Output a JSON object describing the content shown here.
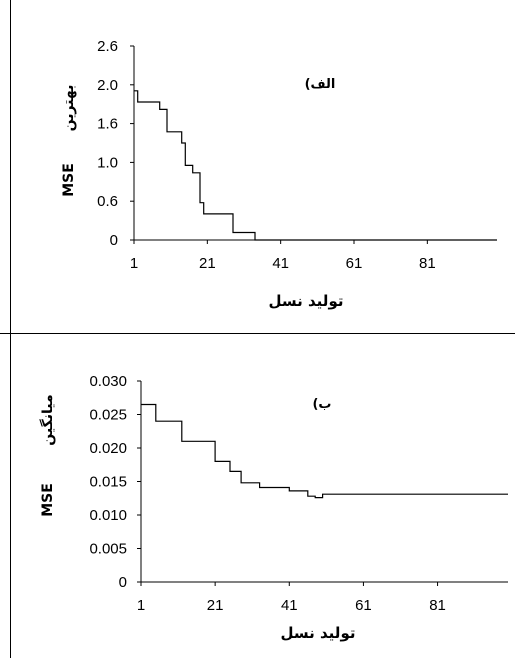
{
  "chart_data": [
    {
      "type": "line",
      "panel_label": "الف)",
      "title": "",
      "xlabel": "تولید نسل",
      "ylabel_fa": "بهترین",
      "ylabel_en": "MSE",
      "xlim": [
        1,
        100
      ],
      "ylim": [
        0,
        2.6
      ],
      "xticks": [
        "1",
        "21",
        "41",
        "61",
        "81"
      ],
      "yticks": [
        "0",
        "0.6",
        "1.0",
        "1.6",
        "2.0",
        "2.6"
      ],
      "series": [
        {
          "style": "step",
          "color": "#000000",
          "x": [
            1,
            2,
            6,
            8,
            10,
            13,
            14,
            15,
            16,
            17,
            19,
            20,
            27,
            28,
            33,
            34,
            100
          ],
          "y": [
            2.0,
            1.85,
            1.85,
            1.75,
            1.45,
            1.45,
            1.3,
            1.0,
            1.0,
            0.9,
            0.5,
            0.35,
            0.35,
            0.1,
            0.1,
            0.0,
            0.0
          ]
        }
      ]
    },
    {
      "type": "line",
      "panel_label": "ب)",
      "title": "",
      "xlabel": "تولید نسل",
      "ylabel_fa": "میانگین",
      "ylabel_en": "MSE",
      "xlim": [
        1,
        100
      ],
      "ylim": [
        0,
        0.03
      ],
      "xticks": [
        "1",
        "21",
        "41",
        "61",
        "81"
      ],
      "yticks": [
        "0",
        "0.005",
        "0.010",
        "0.015",
        "0.020",
        "0.025",
        "0.030"
      ],
      "series": [
        {
          "style": "step",
          "color": "#000000",
          "x": [
            1,
            4,
            5,
            11,
            12,
            20,
            21,
            24,
            25,
            27,
            28,
            32,
            33,
            40,
            41,
            45,
            46,
            47,
            48,
            49,
            50,
            100
          ],
          "y": [
            0.0265,
            0.0265,
            0.024,
            0.024,
            0.021,
            0.021,
            0.018,
            0.018,
            0.0165,
            0.0165,
            0.0148,
            0.0148,
            0.0141,
            0.0141,
            0.0136,
            0.0136,
            0.0128,
            0.0128,
            0.0126,
            0.0126,
            0.0131,
            0.0131
          ]
        }
      ]
    }
  ]
}
